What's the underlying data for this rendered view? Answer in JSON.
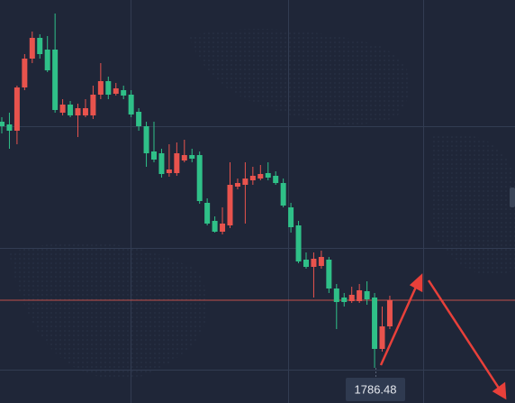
{
  "chart_data": {
    "type": "candlestick",
    "ylim": [
      1777.65,
      1800
    ],
    "up_color": "#e8534d",
    "down_color": "#2fc088",
    "price_line_color": "#c0504a",
    "price_line": 1783.35,
    "crosshair_price": 1786.48,
    "open": [
      1793.25,
      1793.1,
      1792.75,
      1795.15,
      1796.75,
      1797.9,
      1797.25,
      1797.25,
      1793.75,
      1794.2,
      1793.6,
      1793.6,
      1793.6,
      1794.75,
      1795.5,
      1794.8,
      1795.0,
      1794.75,
      1793.8,
      1793.0,
      1791.6,
      1791.5,
      1790.4,
      1790.4,
      1791.1,
      1791.4,
      1791.4,
      1788.75,
      1787.75,
      1787.15,
      1787.5,
      1789.65,
      1789.75,
      1790.0,
      1790.1,
      1790.4,
      1790.25,
      1789.85,
      1788.5,
      1787.5,
      1785.6,
      1785.2,
      1785.25,
      1785.6,
      1784.0,
      1783.5,
      1783.3,
      1783.3,
      1783.85,
      1783.5,
      1780.65,
      1781.9
    ],
    "high": [
      1793.5,
      1793.75,
      1795.25,
      1797.0,
      1798.25,
      1798.1,
      1798.0,
      1799.25,
      1794.5,
      1794.4,
      1794.25,
      1794.5,
      1795.25,
      1796.5,
      1795.75,
      1795.4,
      1795.25,
      1795.0,
      1794.0,
      1793.25,
      1793.25,
      1791.75,
      1792.0,
      1792.1,
      1792.25,
      1791.75,
      1791.6,
      1789.0,
      1788.0,
      1788.5,
      1791.0,
      1790.1,
      1791.0,
      1790.75,
      1790.85,
      1791.0,
      1790.5,
      1790.1,
      1788.75,
      1787.75,
      1786.0,
      1786.0,
      1786.1,
      1785.75,
      1784.25,
      1783.75,
      1784.1,
      1784.25,
      1784.4,
      1783.75,
      1783.0,
      1783.6
    ],
    "low": [
      1792.6,
      1791.75,
      1792.0,
      1795.0,
      1796.5,
      1796.75,
      1796.0,
      1793.75,
      1793.6,
      1793.5,
      1792.4,
      1793.5,
      1793.4,
      1794.5,
      1794.5,
      1794.7,
      1794.5,
      1793.5,
      1792.75,
      1790.75,
      1791.0,
      1790.15,
      1790.2,
      1790.25,
      1791.0,
      1791.0,
      1788.7,
      1787.5,
      1787.1,
      1787.0,
      1787.35,
      1789.5,
      1787.6,
      1789.75,
      1790.0,
      1790.0,
      1789.75,
      1788.5,
      1787.1,
      1785.4,
      1785.1,
      1783.5,
      1785.1,
      1783.75,
      1781.75,
      1783.0,
      1783.2,
      1783.2,
      1783.1,
      1779.6,
      1780.5,
      1781.75
    ],
    "close": [
      1793.0,
      1792.75,
      1795.15,
      1796.75,
      1797.9,
      1797.0,
      1796.1,
      1793.9,
      1794.2,
      1793.6,
      1794.0,
      1794.0,
      1794.75,
      1795.5,
      1794.75,
      1795.1,
      1794.7,
      1793.65,
      1793.0,
      1791.5,
      1791.15,
      1790.35,
      1790.6,
      1791.5,
      1791.4,
      1791.2,
      1788.85,
      1787.6,
      1787.15,
      1787.6,
      1789.75,
      1789.85,
      1790.1,
      1790.25,
      1790.35,
      1790.15,
      1789.85,
      1788.6,
      1787.4,
      1785.5,
      1785.2,
      1785.65,
      1785.75,
      1784.0,
      1783.25,
      1783.25,
      1783.65,
      1783.9,
      1783.4,
      1780.65,
      1781.9,
      1783.35
    ]
  }
}
